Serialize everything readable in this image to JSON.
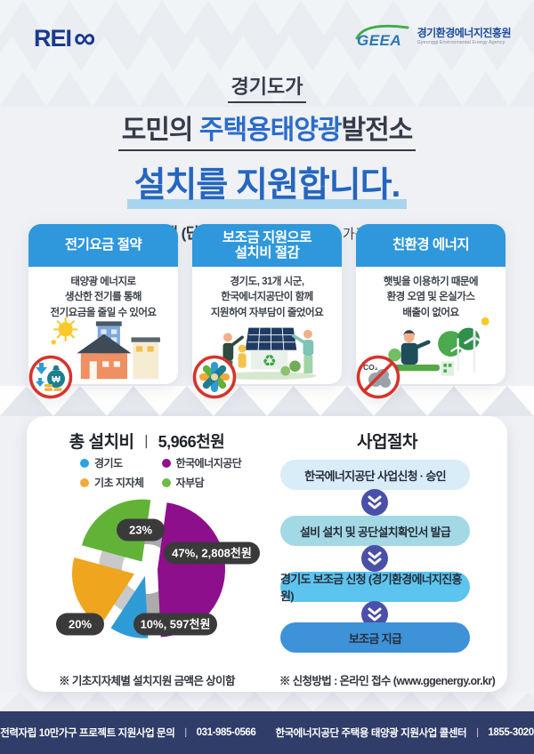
{
  "header": {
    "rei_logo_text": "REI",
    "rei_logo_symbol": "∞",
    "geea_logo_text": "GEEA",
    "geea_name_ko": "경기환경에너지진흥원",
    "geea_name_en": "Gyeonggi Environmental Energy Agency"
  },
  "title": {
    "line1": "경기도가",
    "line2_prefix": "도민의 ",
    "line2_highlight": "주택용태양광",
    "line2_suffix": "발전소",
    "line3": "설치를 지원합니다.",
    "subtitle_bold": "도내 주택 (단독, 다가구)",
    "subtitle_rest": " (3,200 가구, 가구당 3kW)"
  },
  "cards": [
    {
      "title": "전기요금 절약",
      "body": "태양광 에너지로\n생산한 전기를 통해\n전기요금을 줄일 수 있어요",
      "badge_icon": "money-bag-decrease",
      "badge_symbol": "₩"
    },
    {
      "title": "보조금 지원으로\n설치비 절감",
      "body": "경기도, 31개 시군,\n한국에너지공단이 함께\n지원하여 자부담이 줄었어요",
      "badge_icon": "hands-together"
    },
    {
      "title": "친환경 에너지",
      "body": "햇빛을 이용하기 때문에\n환경 오염 및 온실가스\n배출이 없어요",
      "badge_icon": "no-co2",
      "badge_label": "CO₂"
    }
  ],
  "chart_data": {
    "type": "pie",
    "title": "총 설치비",
    "separator": "ㅣ",
    "total_value": "5,966천원",
    "total_thousand_krw": 5966,
    "slices": [
      {
        "name": "한국에너지공단",
        "value": 47,
        "label": "47%, 2,808천원",
        "amount_thousand_krw": 2808,
        "color": "#8e0f8c"
      },
      {
        "name": "경기도",
        "value": 10,
        "label": "10%, 597천원",
        "amount_thousand_krw": 597,
        "color": "#2e9bd6"
      },
      {
        "name": "기초 지자체",
        "value": 20,
        "label": "20%",
        "color": "#f0a51e"
      },
      {
        "name": "자부담",
        "value": 23,
        "label": "23%",
        "color": "#62b238"
      }
    ],
    "legend": [
      {
        "label": "경기도",
        "color": "#29a3e3"
      },
      {
        "label": "한국에너지공단",
        "color": "#8e0f8c"
      },
      {
        "label": "기초 지자체",
        "color": "#f2a93b"
      },
      {
        "label": "자부담",
        "color": "#6cbb45"
      }
    ],
    "note": "※ 기초지자체별 설치지원 금액은 상이함",
    "legend_position": "top",
    "style": "exploded-pie-over-gray-ring"
  },
  "process": {
    "title": "사업절차",
    "steps": [
      {
        "label": "한국에너지공단 사업신청 · 승인",
        "color": "#d8edf8"
      },
      {
        "label": "설비 설치 및 공단설치확인서 발급",
        "color": "#a3d9e5"
      },
      {
        "label": "경기도 보조금 신청 (경기환경에너지진흥원)",
        "color": "#5cc4ee"
      },
      {
        "label": "보조금 지급",
        "color": "#3e92d8"
      }
    ],
    "note": "※ 신청방법 : 온라인 접수 (www.ggenergy.or.kr)"
  },
  "footer": {
    "separator": "ㅣ",
    "items": [
      {
        "label": "전력자립 10만가구 프로젝트 지원사업 문의",
        "phone": "031-985-0566"
      },
      {
        "label": "한국에너지공단 주택용 태양광 지원사업 콜센터",
        "phone": "1855-3020"
      }
    ]
  },
  "theme": {
    "card_header_blue": "#2f97db",
    "title_blue": "#2566be",
    "highlight_bar_blue": "#a9d4ee",
    "footer_navy": "#303d68",
    "badge_ring_red": "#d6332c",
    "arrow_badge_indigo": "#4a50a8",
    "label_pill_dark": "#3a3a3a"
  }
}
